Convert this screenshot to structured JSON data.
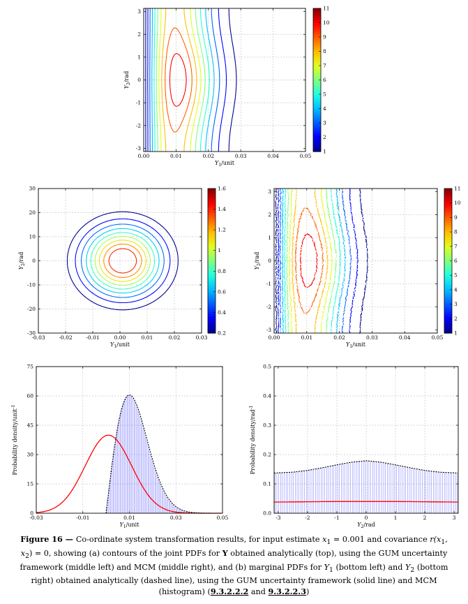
{
  "colorbar_colors": [
    "#00008f",
    "#0000ff",
    "#0060ff",
    "#00bfff",
    "#20ffdf",
    "#80ff80",
    "#dfff20",
    "#ffbf00",
    "#ff6000",
    "#ff0000",
    "#8f0000"
  ],
  "chart_data": [
    {
      "type": "contour",
      "xlabel": "Y",
      "xlabel_sub": "1",
      "xlabel_unit": "/unit",
      "ylabel": "Y",
      "ylabel_sub": "2",
      "ylabel_unit": "/rad",
      "xlim": [
        0,
        0.05
      ],
      "ylim": [
        -3.14,
        3.14
      ],
      "xticks": [
        "0.00",
        "0.01",
        "0.02",
        "0.03",
        "0.04",
        "0.05"
      ],
      "yticks": [
        "-3",
        "-2",
        "-1",
        "0",
        "1",
        "2",
        "3"
      ],
      "colorbar": {
        "min": 1,
        "max": 11,
        "ticks": [
          "1",
          "2",
          "3",
          "4",
          "5",
          "6",
          "7",
          "8",
          "9",
          "10",
          "11"
        ]
      },
      "contour_levels": [
        1,
        2,
        3,
        4,
        5,
        6,
        7,
        8,
        9,
        10
      ],
      "grid": true
    },
    {
      "type": "contour",
      "xlabel": "Y",
      "xlabel_sub": "1",
      "xlabel_unit": "/unit",
      "ylabel": "Y",
      "ylabel_sub": "2",
      "ylabel_unit": "/rad",
      "xlim": [
        -0.03,
        0.03
      ],
      "ylim": [
        -30,
        30
      ],
      "xticks": [
        "-0.03",
        "-0.02",
        "-0.01",
        "0.00",
        "0.01",
        "0.02",
        "0.03"
      ],
      "yticks": [
        "-30",
        "-20",
        "-10",
        "0",
        "10",
        "20",
        "30"
      ],
      "colorbar": {
        "min": 0.2,
        "max": 1.6,
        "ticks": [
          "0.2",
          "0.4",
          "0.6",
          "0.8",
          "1",
          "1.2",
          "1.4",
          "1.6"
        ]
      },
      "contour_levels": [
        0.2,
        0.35,
        0.5,
        0.65,
        0.8,
        0.95,
        1.1,
        1.25,
        1.4
      ],
      "grid": true
    },
    {
      "type": "contour",
      "xlabel": "Y",
      "xlabel_sub": "1",
      "xlabel_unit": "/unit",
      "ylabel": "Y",
      "ylabel_sub": "2",
      "ylabel_unit": "/rad",
      "xlim": [
        0,
        0.05
      ],
      "ylim": [
        -3.14,
        3.14
      ],
      "xticks": [
        "0.00",
        "0.01",
        "0.02",
        "0.03",
        "0.04",
        "0.05"
      ],
      "yticks": [
        "-3",
        "-2",
        "-1",
        "0",
        "1",
        "2",
        "3"
      ],
      "colorbar": {
        "min": 1,
        "max": 11,
        "ticks": [
          "1",
          "2",
          "3",
          "4",
          "5",
          "6",
          "7",
          "8",
          "9",
          "10",
          "11"
        ]
      },
      "contour_levels": [
        1,
        2,
        3,
        4,
        5,
        6,
        7,
        8,
        9,
        10
      ],
      "grid": true
    },
    {
      "type": "histogram",
      "xlabel": "Y",
      "xlabel_sub": "1",
      "xlabel_unit": "/unit",
      "ylabel": "Probability density/unit",
      "ylabel_sup": "-1",
      "xlim": [
        -0.03,
        0.05
      ],
      "ylim": [
        0,
        75
      ],
      "xticks": [
        "-0.03",
        "-0.01",
        "0.01",
        "0.03",
        "0.05"
      ],
      "yticks": [
        "0",
        "15",
        "30",
        "45",
        "60",
        "75"
      ],
      "series": [
        {
          "type": "gaussian",
          "mean": 0.001,
          "sd": 0.01,
          "peak": 39.9,
          "color": "#ff0000"
        },
        {
          "type": "histogram",
          "mode": 0.01,
          "peak": 60.5,
          "support": [
            0.0,
            0.0385
          ],
          "color": "#5050ff"
        }
      ],
      "grid": true
    },
    {
      "type": "histogram",
      "xlabel": "Y",
      "xlabel_sub": "2",
      "xlabel_unit": "/rad",
      "ylabel": "Probability density/rad",
      "ylabel_sup": "-1",
      "xlim": [
        -3.14,
        3.14
      ],
      "ylim": [
        0,
        0.5
      ],
      "xticks": [
        "-3",
        "-2",
        "-1",
        "0",
        "1",
        "2",
        "3"
      ],
      "yticks": [
        "0.0",
        "0.1",
        "0.2",
        "0.3",
        "0.4",
        "0.5"
      ],
      "series": [
        {
          "type": "line",
          "x": [
            -3.14,
            -2,
            -1,
            0,
            1,
            2,
            3.14
          ],
          "values": [
            0.038,
            0.039,
            0.04,
            0.04,
            0.04,
            0.039,
            0.038
          ],
          "color": "#ff0000"
        },
        {
          "type": "histogram",
          "x": [
            -3.14,
            -2.5,
            -2,
            -1.5,
            -1,
            -0.5,
            0,
            0.5,
            1,
            1.5,
            2,
            2.5,
            3.14
          ],
          "values": [
            0.137,
            0.14,
            0.146,
            0.155,
            0.165,
            0.174,
            0.179,
            0.174,
            0.165,
            0.155,
            0.146,
            0.14,
            0.137
          ],
          "color": "#5050ff"
        }
      ],
      "grid": true
    }
  ],
  "caption": {
    "label": "Figure 16",
    "dash": " — ",
    "t1": "Co-ordinate system transformation results, for input estimate ",
    "m1": "x",
    "m1_sub": "1",
    "m1_eq": " = 0.001",
    "t2": " and covariance ",
    "m2": "r(x",
    "m2_s1": "1",
    "m2_mid": ", x",
    "m2_s2": "2",
    "m2_end": ") = 0",
    "t3": ", showing (a) contours of the joint PDFs for ",
    "bY": "Y",
    "t4": " obtained analytically (top), using the GUM uncertainty framework (middle left) and MCM (middle right), and (b) marginal PDFs for ",
    "y1": "Y",
    "y1_sub": "1",
    "t5": " (bottom left) and ",
    "y2": "Y",
    "y2_sub": "2",
    "t6": " (bottom right) obtained analytically (dashed line), using the GUM uncertainty framework (solid line) and MCM (histogram) (",
    "ref1": "9.3.2.2.2",
    "and": " and ",
    "ref2": "9.3.2.2.3",
    "t7": ")"
  }
}
